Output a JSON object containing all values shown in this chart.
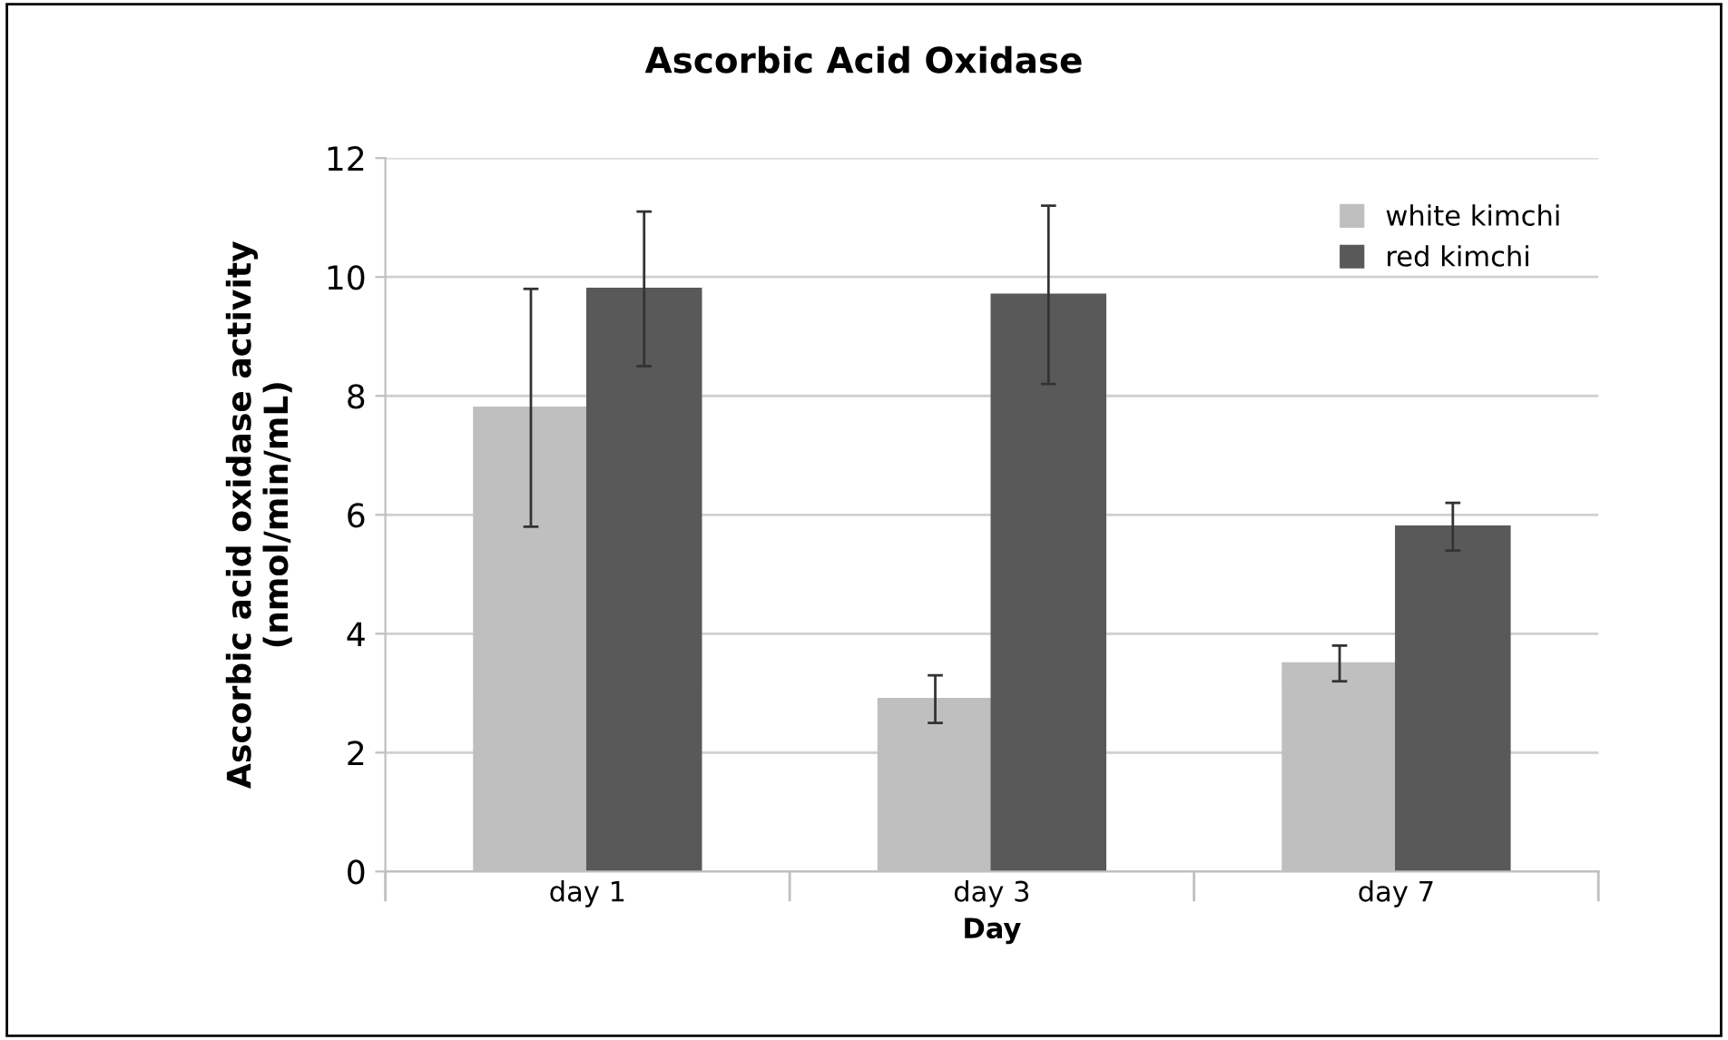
{
  "chart_data": {
    "type": "bar",
    "title": "Ascorbic Acid Oxidase",
    "xlabel": "Day",
    "ylabel": "Ascorbic acid oxidase activity\n(nmol/min/mL)",
    "categories": [
      "day 1",
      "day 3",
      "day 7"
    ],
    "series": [
      {
        "name": "white kimchi",
        "color": "#bfbfbf",
        "values": [
          7.8,
          2.9,
          3.5
        ],
        "errors": [
          2.0,
          0.4,
          0.3
        ]
      },
      {
        "name": "red kimchi",
        "color": "#595959",
        "values": [
          9.8,
          9.7,
          5.8
        ],
        "errors": [
          1.3,
          1.5,
          0.4
        ]
      }
    ],
    "ylim": [
      0,
      12
    ],
    "yticks": [
      0,
      2,
      4,
      6,
      8,
      10,
      12
    ],
    "grid": "y",
    "legend": "top right"
  }
}
